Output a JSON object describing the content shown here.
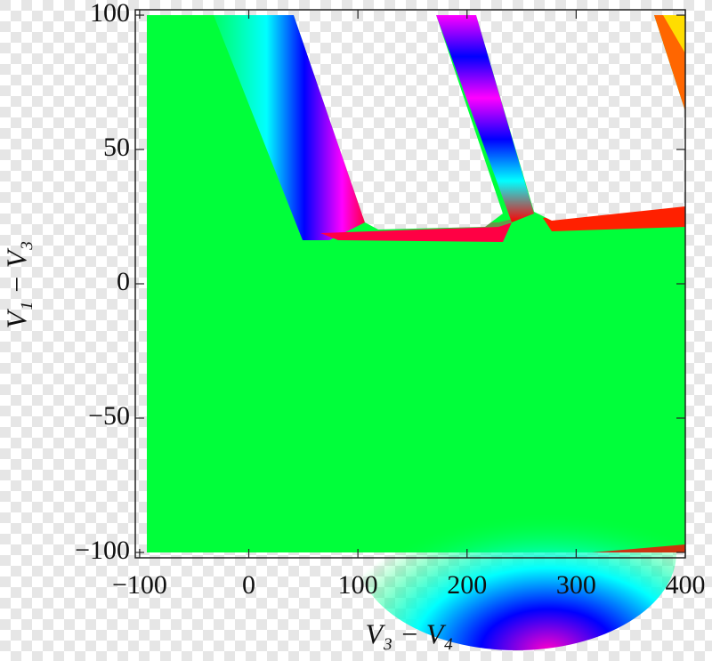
{
  "chart_data": {
    "type": "density",
    "xlabel": "V₃ − V₄",
    "ylabel": "V₁ − V₃",
    "xlim": [
      -104,
      400
    ],
    "ylim": [
      -102,
      102
    ],
    "xticks": [
      {
        "value": -100,
        "label": "−100"
      },
      0,
      100,
      200,
      300,
      400
    ],
    "yticks": [
      {
        "value": -100,
        "label": "−100"
      },
      {
        "value": -50,
        "label": "−50"
      },
      0,
      50,
      100
    ]
  }
}
